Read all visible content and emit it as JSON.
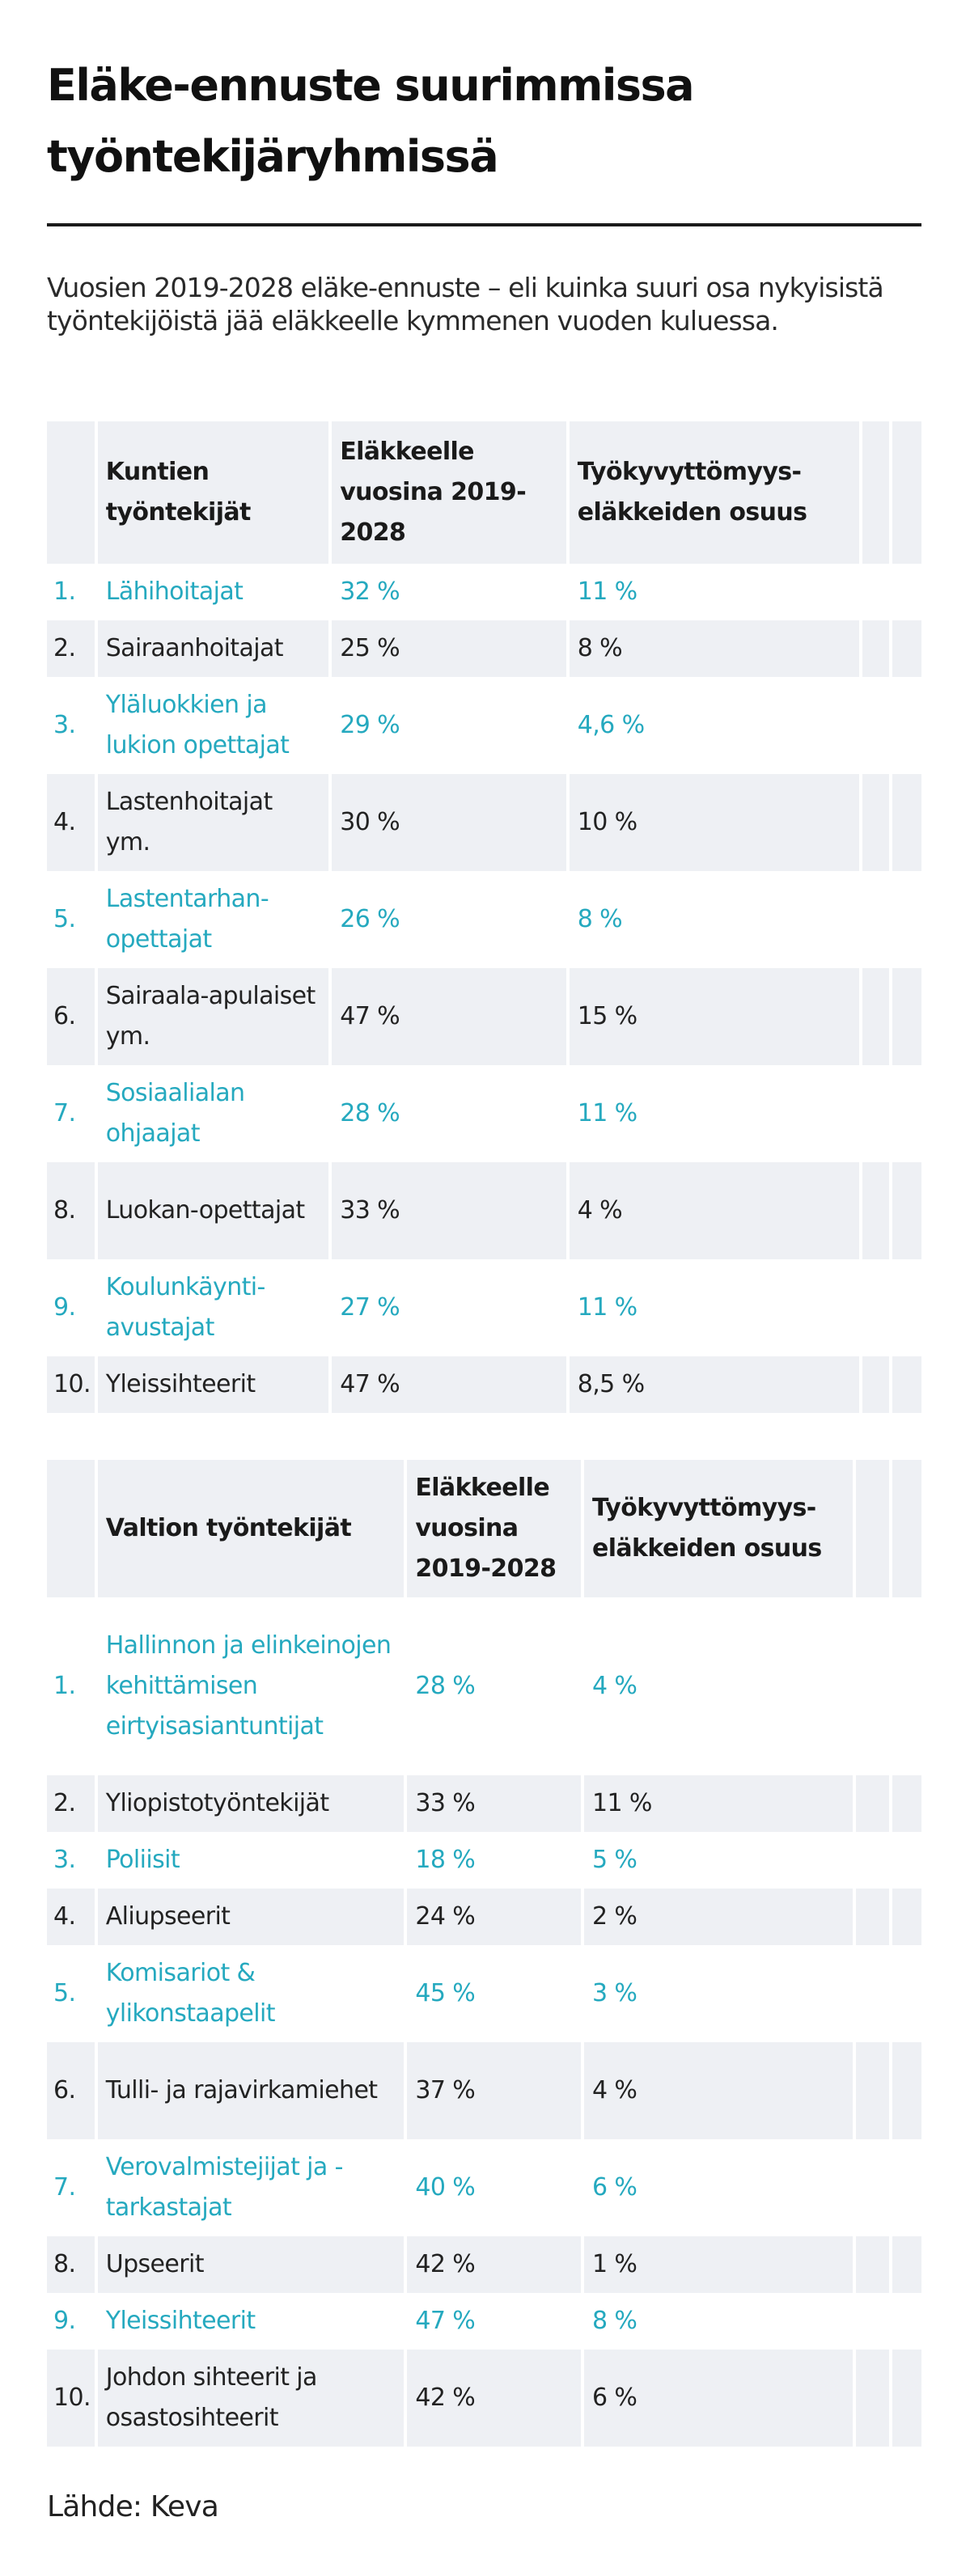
{
  "title": "Eläke-ennuste suurimmissa työntekijäryhmissä",
  "intro": "Vuosien 2019-2028 eläke-ennuste – eli kuinka suuri osa nykyisistä työntekijöistä jää eläkkeelle kymmenen vuoden kuluessa.",
  "colors": {
    "accent": "#25a9bf",
    "row_shade": "#eef0f4",
    "text": "#222222"
  },
  "table1": {
    "headers": [
      "",
      "Kuntien työntekijät",
      "Eläkkeelle vuosina 2019-2028",
      "Työkyvyttömyys-eläkkeiden osuus",
      "",
      ""
    ],
    "rows": [
      [
        "1.",
        "Lähihoitajat",
        "32 %",
        "11 %"
      ],
      [
        "2.",
        "Sairaanhoitajat",
        "25 %",
        "8 %"
      ],
      [
        "3.",
        "Yläluokkien ja lukion opettajat",
        "29 %",
        "4,6 %"
      ],
      [
        "4.",
        "Lastenhoitajat ym.",
        "30 %",
        "10 %"
      ],
      [
        "5.",
        "Lastentarhan-opettajat",
        "26 %",
        "8 %"
      ],
      [
        "6.",
        "Sairaala-apulaiset ym.",
        "47 %",
        "15 %"
      ],
      [
        "7.",
        "Sosiaalialan ohjaajat",
        "28 %",
        "11 %"
      ],
      [
        "8.",
        "Luokan-opettajat",
        "33 %",
        "4 %"
      ],
      [
        "9.",
        "Koulunkäynti-avustajat",
        "27 %",
        "11 %"
      ],
      [
        "10.",
        "Yleissihteerit",
        "47 %",
        "8,5 %"
      ]
    ]
  },
  "table2": {
    "headers": [
      "",
      "Valtion työntekijät",
      "Eläkkeelle vuosina 2019-2028",
      "Työkyvyttömyys-eläkkeiden osuus",
      "",
      ""
    ],
    "rows": [
      [
        "1.",
        "Hallinnon ja elinkeinojen kehittämisen eirtyisasiantuntijat",
        "28 %",
        "4 %"
      ],
      [
        "2.",
        "Yliopistotyöntekijät",
        "33 %",
        "11 %"
      ],
      [
        "3.",
        "Poliisit",
        "18 %",
        "5 %"
      ],
      [
        "4.",
        "Aliupseerit",
        "24 %",
        "2 %"
      ],
      [
        "5.",
        "Komisariot & ylikonstaapelit",
        "45 %",
        "3 %"
      ],
      [
        "6.",
        "Tulli- ja rajavirkamiehet",
        "37 %",
        "4 %"
      ],
      [
        "7.",
        "Verovalmistejijat ja -tarkastajat",
        "40 %",
        "6 %"
      ],
      [
        "8.",
        "Upseerit",
        "42 %",
        "1 %"
      ],
      [
        "9.",
        "Yleissihteerit",
        "47 %",
        "8 %"
      ],
      [
        "10.",
        "Johdon sihteerit ja osastosihteerit",
        "42 %",
        "6 %"
      ]
    ]
  },
  "source": "Lähde: Keva"
}
